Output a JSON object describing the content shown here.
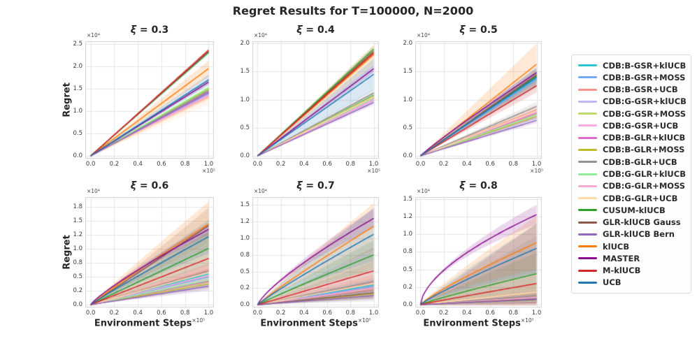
{
  "title": "Regret Results for T=100000, N=2000",
  "axes": {
    "ylabel": "Regret",
    "xlabel": "Environment Steps",
    "y_offset_label": "×10⁴",
    "x_offset_label": "×10⁵"
  },
  "legend": {
    "series": [
      {
        "name": "CDB:B-GSR+klUCB",
        "color": "#2BC4CE"
      },
      {
        "name": "CDB:B-GSR+MOSS",
        "color": "#72A8F4"
      },
      {
        "name": "CDB:B-GSR+UCB",
        "color": "#F8948C"
      },
      {
        "name": "CDB:G-GSR+klUCB",
        "color": "#BDB8F0"
      },
      {
        "name": "CDB:G-GSR+MOSS",
        "color": "#BFDA6A"
      },
      {
        "name": "CDB:G-GSR+UCB",
        "color": "#F9ADE2"
      },
      {
        "name": "CDB:B-GLR+klUCB",
        "color": "#DC6BC8"
      },
      {
        "name": "CDB:B-GLR+MOSS",
        "color": "#BDBC2B"
      },
      {
        "name": "CDB:B-GLR+UCB",
        "color": "#929292"
      },
      {
        "name": "CDB:G-GLR+klUCB",
        "color": "#90EE9A"
      },
      {
        "name": "CDB:G-GLR+MOSS",
        "color": "#F8A9D4"
      },
      {
        "name": "CDB:G-GLR+UCB",
        "color": "#FFD8A7"
      },
      {
        "name": "CUSUM-klUCB",
        "color": "#2CA02C"
      },
      {
        "name": "GLR-klUCB Gauss",
        "color": "#8C564B"
      },
      {
        "name": "GLR-klUCB Bern",
        "color": "#9467BD"
      },
      {
        "name": "klUCB",
        "color": "#FF7F0E"
      },
      {
        "name": "MASTER",
        "color": "#8B0E8E"
      },
      {
        "name": "M-klUCB",
        "color": "#D62728"
      },
      {
        "name": "UCB",
        "color": "#1F77B4"
      }
    ]
  },
  "chart_data": [
    {
      "type": "line",
      "title": "ξ = 0.3",
      "title_symbol": "ξ",
      "title_rest": " = 0.3",
      "x_axis_scale": "×10⁵",
      "y_axis_scale": "×10⁴",
      "xlim": [
        -0.045,
        1.045
      ],
      "ylim": [
        -0.06,
        2.56
      ],
      "xtick_vals": [
        0,
        0.2,
        0.4,
        0.6,
        0.8,
        1.0
      ],
      "xtick_labels": [
        "0.0",
        "0.2",
        "0.4",
        "0.6",
        "0.8",
        "1.0"
      ],
      "ytick_vals": [
        0,
        0.5,
        1.0,
        1.5,
        2.0,
        2.5
      ],
      "ytick_labels": [
        "0.0",
        "0.5",
        "1.0",
        "1.5",
        "2.0",
        "2.5"
      ],
      "final_regret": [
        1.42,
        1.38,
        1.33,
        1.4,
        1.48,
        1.36,
        1.44,
        1.5,
        1.46,
        1.52,
        1.34,
        1.3,
        2.31,
        2.33,
        1.41,
        1.95,
        1.65,
        2.36,
        1.7
      ],
      "band_halfwidth": [
        0.05,
        0.05,
        0.08,
        0.05,
        0.05,
        0.05,
        0.05,
        0.05,
        0.06,
        0.05,
        0.06,
        0.16,
        0.04,
        0.04,
        0.05,
        0.18,
        0.06,
        0.04,
        0.12
      ],
      "curve_power": [
        1,
        1,
        1,
        1,
        1,
        1,
        1,
        1,
        1,
        1,
        1,
        1,
        1,
        1,
        1,
        1,
        1,
        1,
        1
      ]
    },
    {
      "type": "line",
      "title": "ξ = 0.4",
      "title_symbol": "ξ",
      "title_rest": " = 0.4",
      "x_axis_scale": "×10⁵",
      "y_axis_scale": "×10⁴",
      "xlim": [
        -0.045,
        1.045
      ],
      "ylim": [
        -0.05,
        2.04
      ],
      "xtick_vals": [
        0,
        0.2,
        0.4,
        0.6,
        0.8,
        1.0
      ],
      "xtick_labels": [
        "0.0",
        "0.2",
        "0.4",
        "0.6",
        "0.8",
        "1.0"
      ],
      "ytick_vals": [
        0,
        0.5,
        1.0,
        1.5,
        2.0
      ],
      "ytick_labels": [
        "0.0",
        "0.5",
        "1.0",
        "1.5",
        "2.0"
      ],
      "final_regret": [
        1.08,
        1.05,
        1.02,
        0.99,
        1.06,
        1.01,
        1.04,
        1.07,
        1.12,
        1.03,
        1.0,
        1.05,
        1.9,
        1.86,
        0.95,
        1.8,
        1.55,
        1.83,
        1.45
      ],
      "band_halfwidth": [
        0.05,
        0.05,
        0.06,
        0.05,
        0.05,
        0.05,
        0.05,
        0.05,
        0.07,
        0.05,
        0.05,
        0.1,
        0.06,
        0.05,
        0.05,
        0.17,
        0.07,
        0.05,
        0.28
      ],
      "curve_power": [
        1,
        1,
        1,
        1,
        1,
        1,
        1,
        1,
        1,
        1,
        1,
        1,
        1,
        1,
        1,
        1,
        1,
        1,
        1
      ]
    },
    {
      "type": "line",
      "title": "ξ = 0.5",
      "title_symbol": "ξ",
      "title_rest": " = 0.5",
      "x_axis_scale": "×10⁵",
      "y_axis_scale": "×10⁴",
      "xlim": [
        -0.045,
        1.045
      ],
      "ylim": [
        -0.05,
        2.04
      ],
      "xtick_vals": [
        0,
        0.2,
        0.4,
        0.6,
        0.8,
        1.0
      ],
      "xtick_labels": [
        "0.0",
        "0.2",
        "0.4",
        "0.6",
        "0.8",
        "1.0"
      ],
      "ytick_vals": [
        0,
        0.5,
        1.0,
        1.5,
        2.0
      ],
      "ytick_labels": [
        "0.0",
        "0.5",
        "1.0",
        "1.5",
        "2.0"
      ],
      "final_regret": [
        1.38,
        1.36,
        0.82,
        0.68,
        0.74,
        0.71,
        0.76,
        0.7,
        0.88,
        0.73,
        0.78,
        0.8,
        1.42,
        1.44,
        0.63,
        1.63,
        1.48,
        1.25,
        1.4
      ],
      "band_halfwidth": [
        0.08,
        0.08,
        0.08,
        0.05,
        0.05,
        0.05,
        0.06,
        0.05,
        0.08,
        0.05,
        0.06,
        0.12,
        0.08,
        0.08,
        0.05,
        0.37,
        0.08,
        0.12,
        0.18
      ],
      "curve_power": [
        1,
        1,
        1,
        1,
        1,
        1,
        1,
        1,
        1,
        1,
        1,
        1,
        1,
        1,
        1,
        1,
        0.93,
        1,
        1
      ]
    },
    {
      "type": "line",
      "title": "ξ = 0.6",
      "title_symbol": "ξ",
      "title_rest": " = 0.6",
      "x_axis_scale": "×10⁵",
      "y_axis_scale": "×10⁴",
      "xlim": [
        -0.045,
        1.045
      ],
      "ylim": [
        -0.05,
        1.93
      ],
      "xtick_vals": [
        0,
        0.2,
        0.4,
        0.6,
        0.8,
        1.0
      ],
      "xtick_labels": [
        "0.0",
        "0.2",
        "0.4",
        "0.6",
        "0.8",
        "1.0"
      ],
      "ytick_vals": [
        0,
        0.25,
        0.5,
        0.75,
        1.0,
        1.25,
        1.5,
        1.75
      ],
      "ytick_labels": [
        "0.0",
        "0.2",
        "0.5",
        "0.8",
        "1.0",
        "1.2",
        "1.5",
        "1.8"
      ],
      "final_regret": [
        0.55,
        0.5,
        0.62,
        0.35,
        0.4,
        0.38,
        0.42,
        0.37,
        0.6,
        0.44,
        0.52,
        0.58,
        1.01,
        1.42,
        0.33,
        1.45,
        1.35,
        0.83,
        1.22
      ],
      "band_halfwidth": [
        0.1,
        0.1,
        0.12,
        0.08,
        0.08,
        0.08,
        0.08,
        0.08,
        0.12,
        0.08,
        0.1,
        0.15,
        0.3,
        0.32,
        0.08,
        0.4,
        0.1,
        0.25,
        0.3
      ],
      "curve_power": [
        1,
        1,
        1,
        1,
        1,
        1,
        1,
        1,
        1,
        1,
        1,
        1,
        1,
        1,
        1,
        0.95,
        0.85,
        1,
        0.95
      ]
    },
    {
      "type": "line",
      "title": "ξ = 0.7",
      "title_symbol": "ξ",
      "title_rest": " = 0.7",
      "x_axis_scale": "×10⁵",
      "y_axis_scale": "×10⁴",
      "xlim": [
        -0.045,
        1.045
      ],
      "ylim": [
        -0.04,
        1.62
      ],
      "xtick_vals": [
        0,
        0.2,
        0.4,
        0.6,
        0.8,
        1.0
      ],
      "xtick_labels": [
        "0.0",
        "0.2",
        "0.4",
        "0.6",
        "0.8",
        "1.0"
      ],
      "ytick_vals": [
        0,
        0.25,
        0.5,
        0.75,
        1.0,
        1.25,
        1.5
      ],
      "ytick_labels": [
        "0.0",
        "0.2",
        "0.5",
        "0.8",
        "1.0",
        "1.2",
        "1.5"
      ],
      "final_regret": [
        0.3,
        0.28,
        0.33,
        0.15,
        0.18,
        0.17,
        0.2,
        0.16,
        0.35,
        0.19,
        0.25,
        0.32,
        0.75,
        0.18,
        0.14,
        1.18,
        1.3,
        0.51,
        1.06
      ],
      "band_halfwidth": [
        0.1,
        0.1,
        0.12,
        0.06,
        0.07,
        0.07,
        0.08,
        0.07,
        0.3,
        0.07,
        0.09,
        0.14,
        0.22,
        0.08,
        0.06,
        0.35,
        0.14,
        0.35,
        0.4
      ],
      "curve_power": [
        1,
        1,
        1,
        1,
        1,
        1,
        1,
        1,
        1,
        1,
        1,
        1,
        0.95,
        1,
        1,
        0.92,
        0.78,
        1,
        0.92
      ]
    },
    {
      "type": "line",
      "title": "ξ = 0.8",
      "title_symbol": "ξ",
      "title_rest": " = 0.8",
      "x_axis_scale": "×10⁵",
      "y_axis_scale": "×10⁴",
      "xlim": [
        -0.045,
        1.045
      ],
      "ylim": [
        -0.04,
        1.53
      ],
      "xtick_vals": [
        0,
        0.2,
        0.4,
        0.6,
        0.8,
        1.0
      ],
      "xtick_labels": [
        "0.0",
        "0.2",
        "0.4",
        "0.6",
        "0.8",
        "1.0"
      ],
      "ytick_vals": [
        0,
        0.25,
        0.5,
        0.75,
        1.0,
        1.25,
        1.5
      ],
      "ytick_labels": [
        "0.0",
        "0.2",
        "0.5",
        "0.8",
        "1.0",
        "1.2",
        "1.5"
      ],
      "final_regret": [
        0.1,
        0.09,
        0.12,
        0.05,
        0.07,
        0.06,
        0.08,
        0.06,
        0.13,
        0.07,
        0.1,
        0.18,
        0.44,
        0.08,
        0.07,
        0.88,
        1.28,
        0.3,
        0.8
      ],
      "band_halfwidth": [
        0.06,
        0.06,
        0.08,
        0.04,
        0.05,
        0.05,
        0.05,
        0.05,
        0.85,
        0.05,
        0.07,
        0.14,
        0.3,
        0.06,
        0.05,
        0.38,
        0.14,
        0.85,
        0.35
      ],
      "curve_power": [
        1,
        1,
        1,
        1,
        1,
        1,
        1,
        1,
        1,
        1,
        1,
        1,
        0.9,
        1,
        1,
        0.85,
        0.6,
        0.95,
        0.88
      ]
    }
  ]
}
